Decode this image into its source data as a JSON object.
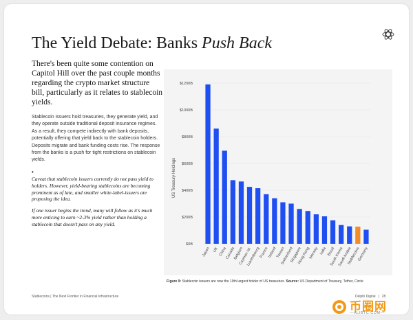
{
  "page": {
    "title_plain": "The Yield Debate: Banks ",
    "title_italic": "Push Back",
    "lead": "There's been quite some contention on Capitol Hill over the past couple months regarding the crypto market structure bill, particularly as it relates to stablecoin yields.",
    "body": "Stablecoin issuers hold treasuries, they generate yield, and they operate outside traditional deposit insurance regimes. As a result, they compete indirectly with bank deposits, potentially offering that yield back to the stablecoin holders. Deposits migrate and bank funding costs rise. The response from the banks is a push for tight restrictions on stablecoin yields.",
    "bullet": "•",
    "quote1": "Caveat that stablecoin issuers currently do not pass yield to holders. However, yield-bearing stablecoins are becoming prominent as of late, and smaller white-label-issuers are proposing the idea.",
    "quote2": "If one issuer begins the trend, many will follow as it's much more enticing to earn ~2-3% yield rather than holding a stablecoin that doesn't pass on any yield.",
    "caption_bold": "Figure 9:",
    "caption_text": " Stablecoin issuers are now the 19th largest holder of US treasuries. ",
    "caption_source_label": "Source:",
    "caption_source": " US Department of Treasury, Tether, Circle",
    "footer_left": "Stablecoins | The Next Frontier in Financial Infrastructure",
    "footer_brand": "Delphi Digital",
    "footer_sep": "|",
    "footer_page": "28",
    "watermark_text": "币圈网",
    "watermark_url": "—ALIBTC.COM—"
  },
  "colors": {
    "bar": "#1f4ff0",
    "highlight": "#f28c28",
    "axis_text": "#444444",
    "watermark": "#f29a17"
  },
  "chart_data": {
    "type": "bar",
    "ylabel": "US Treasury Holdings",
    "ylim": [
      0,
      1200
    ],
    "yticks": [
      0,
      200,
      400,
      600,
      800,
      1000,
      1200
    ],
    "ytick_labels": [
      "$0B",
      "$200B",
      "$400B",
      "$600B",
      "$800B",
      "$1000B",
      "$1200B"
    ],
    "grid": "horizontal",
    "categories": [
      "Japan",
      "UK",
      "China",
      "Canada",
      "Belgium",
      "Cayman Isl.",
      "Luxembourg",
      "France",
      "Ireland",
      "Taiwan",
      "Switzerland",
      "Singapore",
      "Hong Kong",
      "Norway",
      "India",
      "Brazil",
      "South Korea",
      "Saudi Arabia",
      "Stablecoins",
      "Germany"
    ],
    "values": [
      1190,
      860,
      695,
      475,
      465,
      425,
      415,
      370,
      340,
      310,
      300,
      260,
      245,
      220,
      205,
      175,
      140,
      130,
      128,
      105
    ],
    "highlight_category": "Stablecoins"
  }
}
